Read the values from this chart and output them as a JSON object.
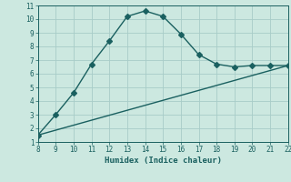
{
  "xlabel": "Humidex (Indice chaleur)",
  "bg_color": "#cce8e0",
  "grid_color": "#a8ccc8",
  "line_color": "#1a6060",
  "xlim": [
    8,
    22
  ],
  "ylim": [
    1,
    11
  ],
  "xticks": [
    8,
    9,
    10,
    11,
    12,
    13,
    14,
    15,
    16,
    17,
    18,
    19,
    20,
    21,
    22
  ],
  "yticks": [
    1,
    2,
    3,
    4,
    5,
    6,
    7,
    8,
    9,
    10,
    11
  ],
  "curve1_x": [
    8,
    9,
    10,
    11,
    12,
    13,
    14,
    15,
    16,
    17,
    18,
    19,
    20,
    21,
    22
  ],
  "curve1_y": [
    1.5,
    3.0,
    4.6,
    6.7,
    8.4,
    10.2,
    10.6,
    10.2,
    8.9,
    7.4,
    6.7,
    6.5,
    6.6,
    6.6,
    6.6
  ],
  "curve2_x": [
    8,
    22
  ],
  "curve2_y": [
    1.5,
    6.6
  ],
  "markersize": 3,
  "linewidth": 1.0
}
